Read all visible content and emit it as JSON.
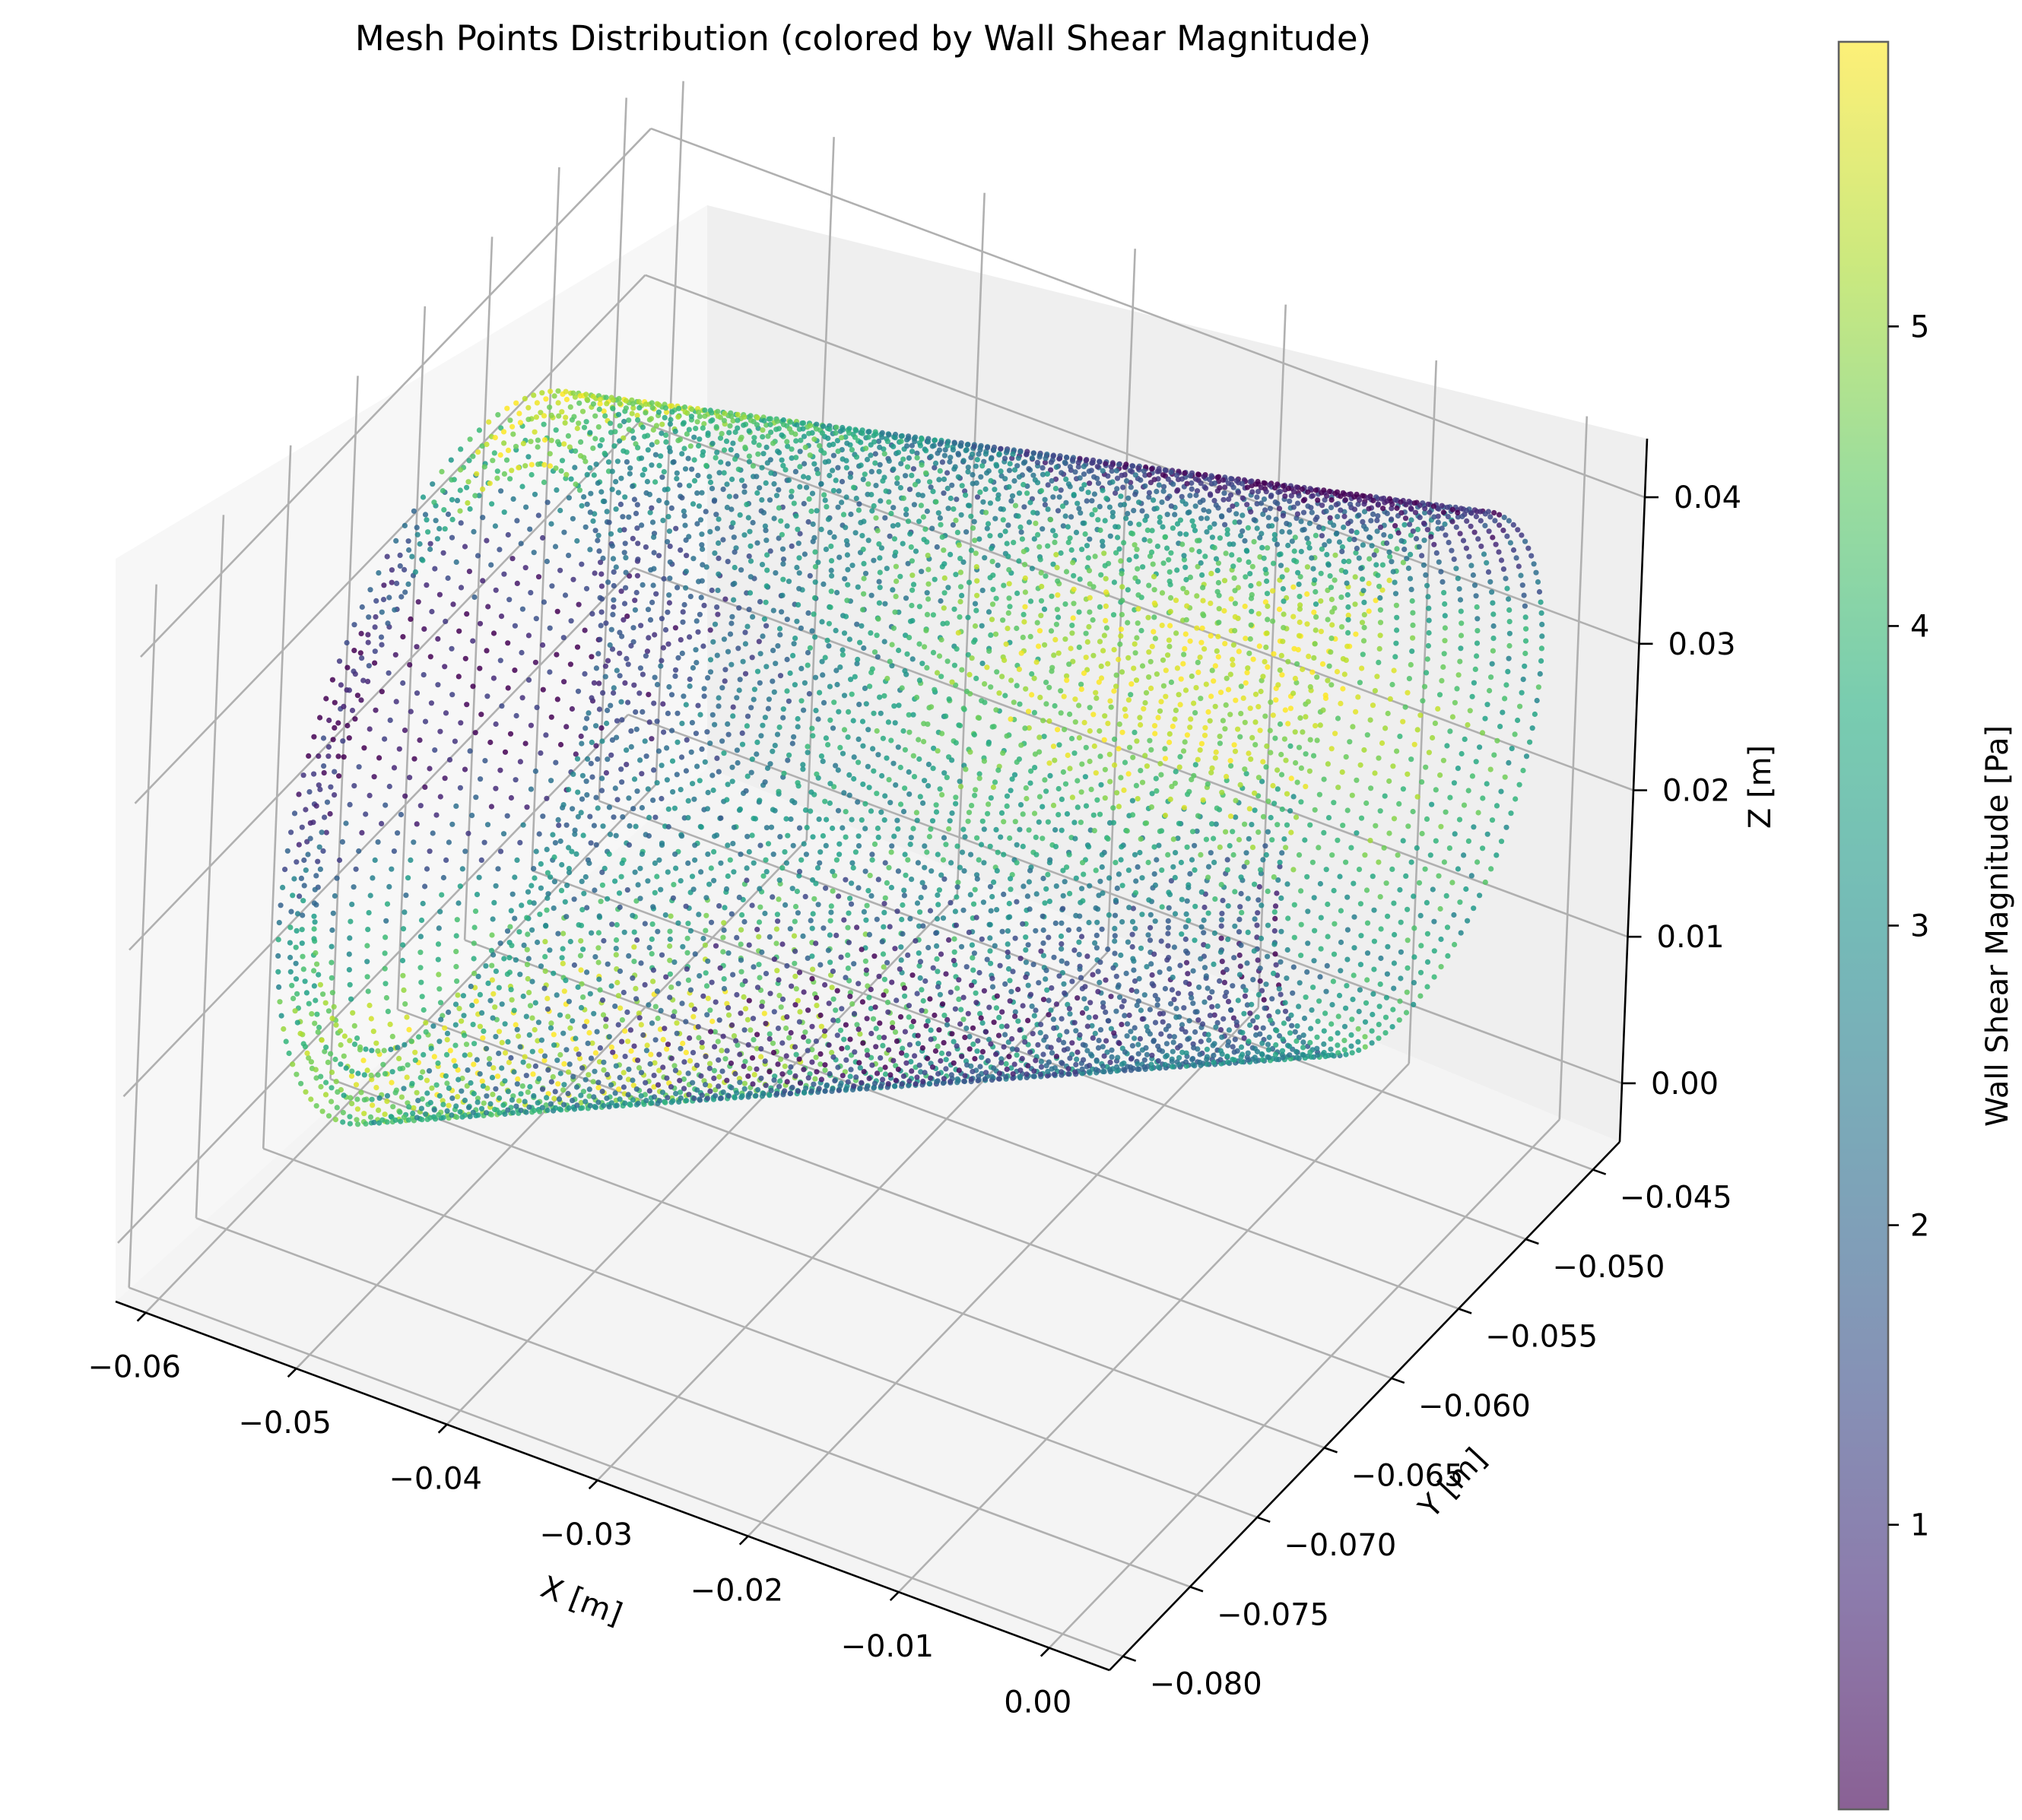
{
  "chart_data": {
    "type": "scatter",
    "projection": "3d",
    "title": "Mesh Points Distribution (colored by Wall Shear Magnitude)",
    "xlabel": "X [m]",
    "ylabel": "Y [m]",
    "zlabel": "Z [m]",
    "xlim": [
      -0.062,
      0.004
    ],
    "ylim": [
      -0.081,
      -0.043
    ],
    "zlim": [
      -0.004,
      0.044
    ],
    "x_ticks": [
      -0.06,
      -0.05,
      -0.04,
      -0.03,
      -0.02,
      -0.01,
      0.0
    ],
    "x_tick_labels": [
      "−0.06",
      "−0.05",
      "−0.04",
      "−0.03",
      "−0.02",
      "−0.01",
      "0.00"
    ],
    "y_ticks": [
      -0.045,
      -0.05,
      -0.055,
      -0.06,
      -0.065,
      -0.07,
      -0.075,
      -0.08
    ],
    "y_tick_labels": [
      "−0.045",
      "−0.050",
      "−0.055",
      "−0.060",
      "−0.065",
      "−0.070",
      "−0.075",
      "−0.080"
    ],
    "z_ticks": [
      0.0,
      0.01,
      0.02,
      0.03,
      0.04
    ],
    "z_tick_labels": [
      "0.00",
      "0.01",
      "0.02",
      "0.03",
      "0.04"
    ],
    "grid": true,
    "colormap": "viridis",
    "colorbar": {
      "label": "Wall Shear Magnitude [Pa]",
      "range": [
        0.05,
        5.95
      ],
      "ticks": [
        1,
        2,
        3,
        4,
        5
      ],
      "tick_labels": [
        "1",
        "2",
        "3",
        "4",
        "5"
      ]
    },
    "geometry": {
      "shape": "tube",
      "axis_start": [
        -0.057,
        -0.062,
        0.017
      ],
      "axis_end": [
        -0.004,
        -0.051,
        0.025
      ],
      "radius_start": 0.0175,
      "radius_end": 0.013,
      "wall_thickness": 0.0035,
      "shear_range": [
        0.05,
        5.95
      ]
    }
  }
}
